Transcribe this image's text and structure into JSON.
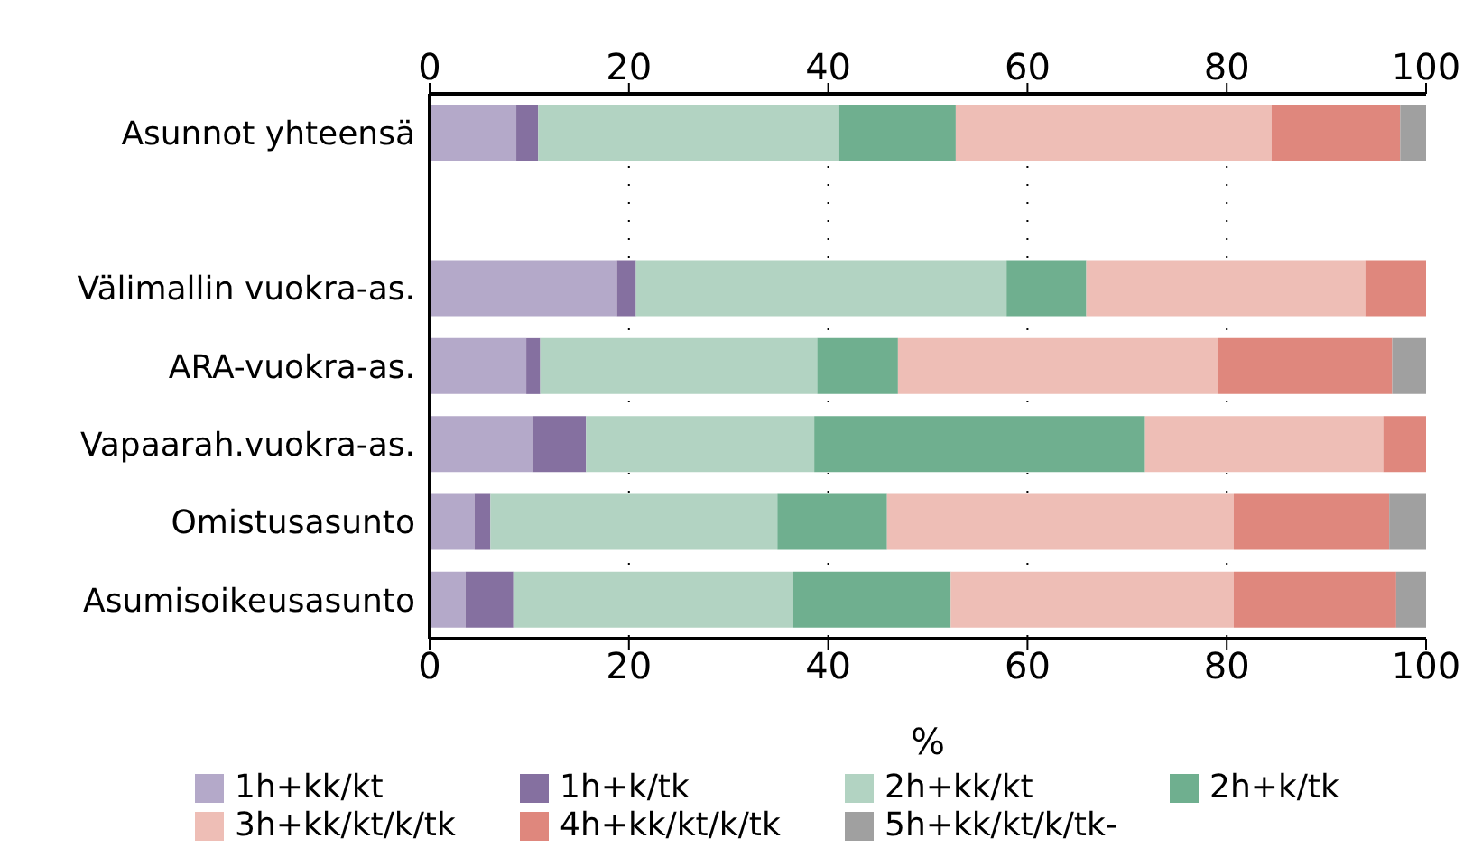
{
  "chart_data": {
    "type": "bar",
    "orientation": "horizontal",
    "stacked": true,
    "categories": [
      "Asunnot yhteensä",
      null,
      "Välimallin vuokra-as.",
      "ARA-vuokra-as.",
      "Vapaarah.vuokra-as.",
      "Omistusasunto",
      "Asumisoikeusasunto"
    ],
    "series": [
      {
        "name": "1h+kk/kt",
        "color": "#b4a9c9",
        "values": [
          8.7,
          null,
          18.8,
          9.7,
          10.3,
          4.5,
          3.6
        ]
      },
      {
        "name": "1h+k/tk",
        "color": "#8570a0",
        "values": [
          2.2,
          null,
          1.9,
          1.4,
          5.4,
          1.6,
          4.8
        ]
      },
      {
        "name": "2h+kk/kt",
        "color": "#b2d3c2",
        "values": [
          30.2,
          null,
          37.2,
          27.8,
          22.9,
          28.8,
          28.1
        ]
      },
      {
        "name": "2h+k/tk",
        "color": "#6faf8f",
        "values": [
          11.7,
          null,
          8.0,
          8.1,
          33.2,
          11.0,
          15.8
        ]
      },
      {
        "name": "3h+kk/kt/k/tk",
        "color": "#eebeb6",
        "values": [
          31.7,
          null,
          28.0,
          32.1,
          23.9,
          34.8,
          28.4
        ]
      },
      {
        "name": "4h+kk/kt/k/tk",
        "color": "#df877d",
        "values": [
          12.9,
          null,
          6.1,
          17.5,
          4.3,
          15.6,
          16.3
        ]
      },
      {
        "name": "5h+kk/kt/k/tk-",
        "color": "#a0a0a0",
        "values": [
          2.6,
          null,
          0,
          3.4,
          0,
          3.7,
          3.0
        ]
      }
    ],
    "xlabel": "%",
    "xlim": [
      0,
      100
    ],
    "xticks": [
      0,
      20,
      40,
      60,
      80,
      100
    ],
    "x2lim": [
      0,
      100
    ],
    "x2ticks": [
      0,
      20,
      40,
      60,
      80,
      100
    ],
    "grid": "x",
    "legend": "bottom"
  }
}
